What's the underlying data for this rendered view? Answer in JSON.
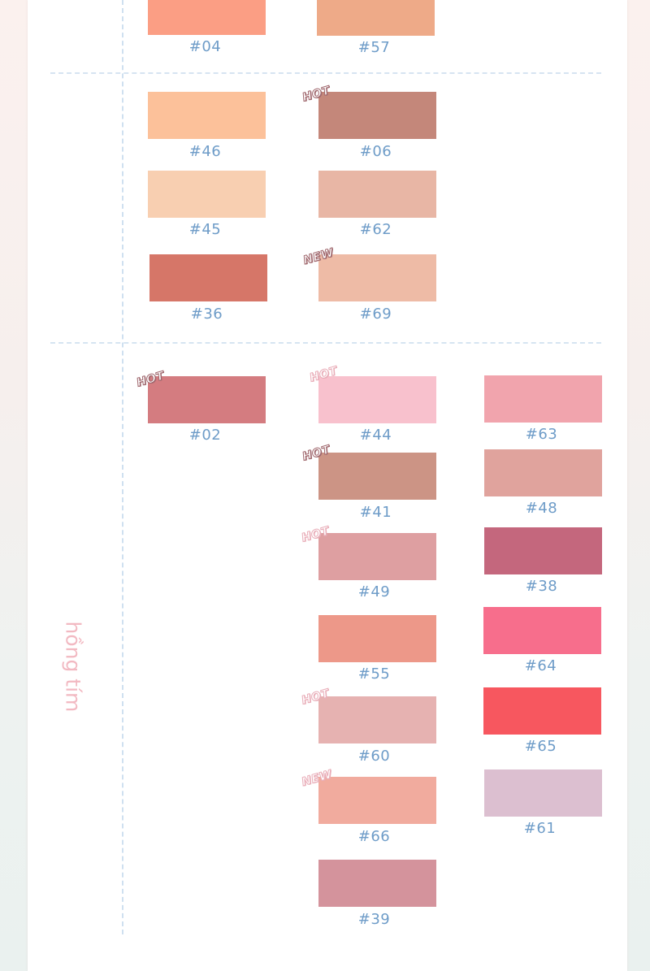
{
  "group_label": "hồng tím",
  "swatches": [
    {
      "code": "#04",
      "color": "#fb9e84"
    },
    {
      "code": "#57",
      "color": "#eeaa88"
    },
    {
      "code": "#46",
      "color": "#fcc19a"
    },
    {
      "code": "#06",
      "color": "#c4877a"
    },
    {
      "code": "#45",
      "color": "#f8cfb1"
    },
    {
      "code": "#62",
      "color": "#e8b6a5"
    },
    {
      "code": "#36",
      "color": "#d67668"
    },
    {
      "code": "#69",
      "color": "#eebba6"
    },
    {
      "code": "#02",
      "color": "#d47c80"
    },
    {
      "code": "#44",
      "color": "#f8c1cd"
    },
    {
      "code": "#63",
      "color": "#f1a4ad"
    },
    {
      "code": "#41",
      "color": "#cc9485"
    },
    {
      "code": "#48",
      "color": "#e0a39d"
    },
    {
      "code": "#49",
      "color": "#de9fa1"
    },
    {
      "code": "#38",
      "color": "#c4677d"
    },
    {
      "code": "#55",
      "color": "#ed9889"
    },
    {
      "code": "#64",
      "color": "#f76e8c"
    },
    {
      "code": "#60",
      "color": "#e6b2b1"
    },
    {
      "code": "#65",
      "color": "#f7575f"
    },
    {
      "code": "#66",
      "color": "#f1ab9e"
    },
    {
      "code": "#61",
      "color": "#dcbfd0"
    },
    {
      "code": "#39",
      "color": "#d4939c"
    }
  ],
  "badges": {
    "hot": "HOT",
    "new": "NEW"
  }
}
